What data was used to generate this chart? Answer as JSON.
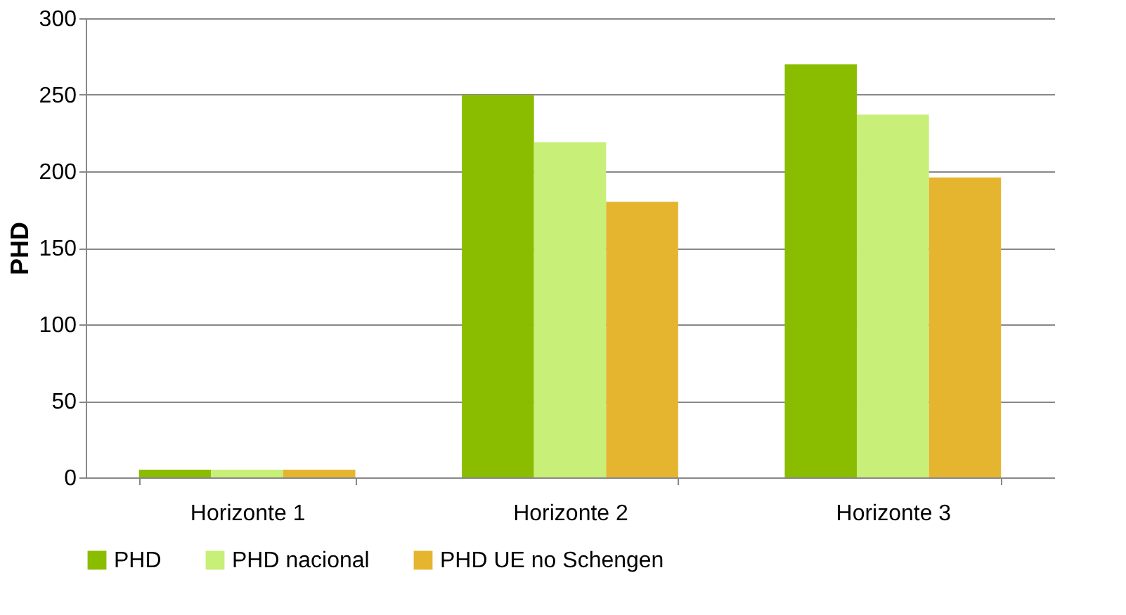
{
  "chart_data": {
    "type": "bar",
    "ylabel": "PHD",
    "categories": [
      "Horizonte 1",
      "Horizonte 2",
      "Horizonte 3"
    ],
    "series": [
      {
        "name": "PHD",
        "color": "#8abd00",
        "values": [
          5,
          250,
          270
        ]
      },
      {
        "name": "PHD nacional",
        "color": "#c8ef78",
        "values": [
          5,
          219,
          237
        ]
      },
      {
        "name": "PHD UE no Schengen",
        "color": "#e6b530",
        "values": [
          5,
          180,
          196
        ]
      }
    ],
    "ylim": [
      0,
      300
    ],
    "yticks": [
      0,
      50,
      100,
      150,
      200,
      250,
      300
    ],
    "grid": "y",
    "legend": "bottom"
  }
}
